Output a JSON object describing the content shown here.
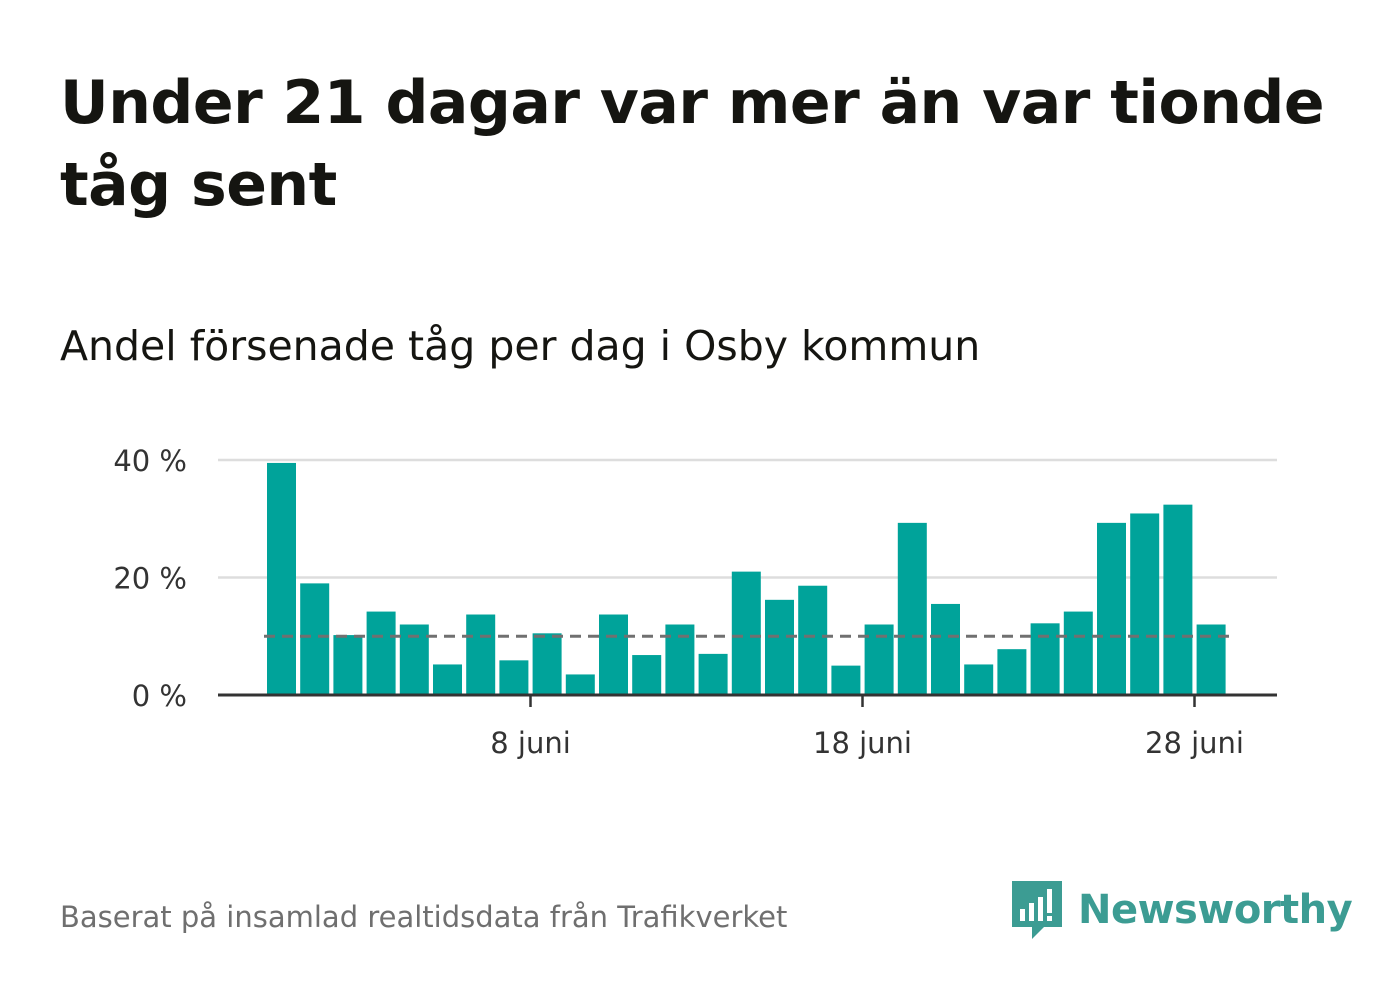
{
  "headline": "Under 21 dagar var mer än var tionde tåg sent",
  "subtitle": "Andel försenade tåg per dag i Osby kommun",
  "source": "Baserat på insamlad realtidsdata från Trafikverket",
  "brand": {
    "name": "Newsworthy",
    "icon": "newsworthy-logo-icon",
    "color": "#3c9c93"
  },
  "colors": {
    "bar": "#00a39a",
    "reference_line": "#707070",
    "grid": "#dddddd",
    "axis": "#333333"
  },
  "chart_data": {
    "type": "bar",
    "title": "Andel försenade tåg per dag i Osby kommun",
    "x_unit": "day of June",
    "x": [
      1,
      2,
      3,
      4,
      5,
      6,
      7,
      8,
      9,
      10,
      11,
      12,
      13,
      14,
      15,
      16,
      17,
      18,
      19,
      20,
      21,
      22,
      23,
      24,
      25,
      26,
      27,
      28,
      29,
      30
    ],
    "values": [
      39.5,
      19,
      10.2,
      14.2,
      12,
      5.2,
      13.7,
      5.9,
      10.5,
      3.5,
      13.7,
      6.8,
      12,
      7,
      21,
      16.2,
      18.6,
      5,
      12,
      29.3,
      15.5,
      5.2,
      7.8,
      12.2,
      14.2,
      29.3,
      30.9,
      32.4,
      12,
      null
    ],
    "reference_line": 10,
    "y_ticks": [
      {
        "value": 0,
        "label": "0 %"
      },
      {
        "value": 20,
        "label": "20 %"
      },
      {
        "value": 40,
        "label": "40 %"
      }
    ],
    "x_ticks": [
      {
        "day": 8,
        "label": "8 juni"
      },
      {
        "day": 18,
        "label": "18 juni"
      },
      {
        "day": 28,
        "label": "28 juni"
      }
    ],
    "ylim": [
      0,
      40
    ],
    "grid": true,
    "legend": "none"
  }
}
